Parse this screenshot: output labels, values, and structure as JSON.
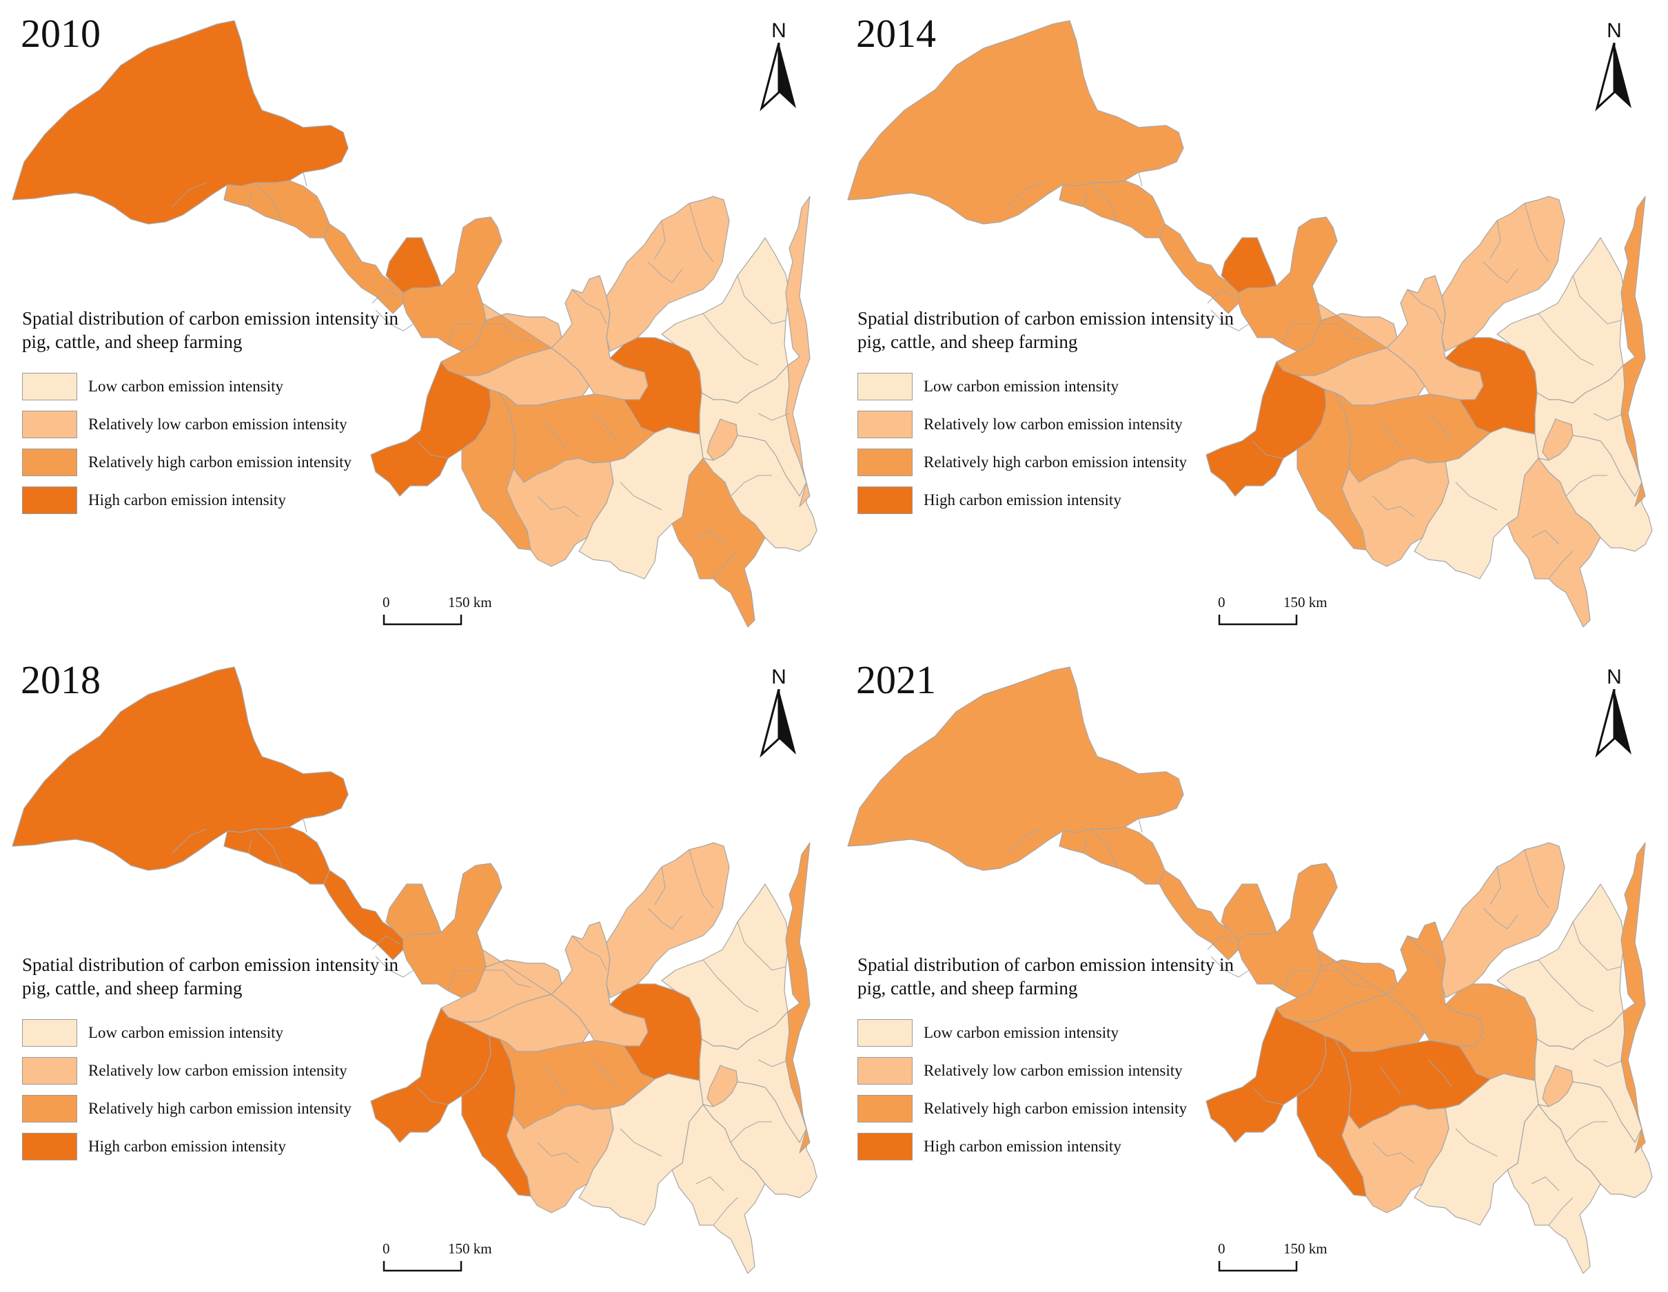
{
  "legend": {
    "title": "Spatial distribution of carbon emission intensity in pig, cattle, and sheep farming",
    "items": [
      {
        "label": "Low carbon emission intensity",
        "color": "#fde8cb"
      },
      {
        "label": "Relatively low carbon emission intensity",
        "color": "#fbc08c"
      },
      {
        "label": "Relatively high carbon emission intensity",
        "color": "#f59d4f"
      },
      {
        "label": "High carbon emission intensity",
        "color": "#ec7318"
      }
    ]
  },
  "north_label": "N",
  "scale": {
    "start": "0",
    "end": "150 km"
  },
  "panels": [
    {
      "year": "2010",
      "classes": {
        "A": 3,
        "B": 2,
        "C": 2,
        "D": 3,
        "E": 2,
        "F": 2,
        "G": 3,
        "H": 2,
        "I": 1,
        "J": 1,
        "K": 1,
        "L": 3,
        "M": 2,
        "N": 1,
        "O": 0,
        "P": 0,
        "Q": 0,
        "R": 2,
        "S": 1,
        "T": 0,
        "U": 1
      }
    },
    {
      "year": "2014",
      "classes": {
        "A": 2,
        "B": 2,
        "C": 2,
        "D": 3,
        "E": 2,
        "F": 2,
        "G": 3,
        "H": 2,
        "I": 1,
        "J": 1,
        "K": 1,
        "L": 3,
        "M": 2,
        "N": 1,
        "O": 0,
        "P": 0,
        "Q": 0,
        "R": 1,
        "S": 1,
        "T": 0,
        "U": 2
      }
    },
    {
      "year": "2018",
      "classes": {
        "A": 3,
        "B": 3,
        "C": 3,
        "D": 2,
        "E": 2,
        "F": 1,
        "G": 3,
        "H": 3,
        "I": 1,
        "J": 1,
        "K": 1,
        "L": 3,
        "M": 2,
        "N": 1,
        "O": 0,
        "P": 0,
        "Q": 0,
        "R": 0,
        "S": 1,
        "T": 0,
        "U": 2
      }
    },
    {
      "year": "2021",
      "classes": {
        "A": 2,
        "B": 2,
        "C": 2,
        "D": 2,
        "E": 2,
        "F": 2,
        "G": 3,
        "H": 3,
        "I": 2,
        "J": 2,
        "K": 1,
        "L": 2,
        "M": 3,
        "N": 1,
        "O": 0,
        "P": 0,
        "Q": 0,
        "R": 0,
        "S": 1,
        "T": 0,
        "U": 2
      }
    }
  ]
}
